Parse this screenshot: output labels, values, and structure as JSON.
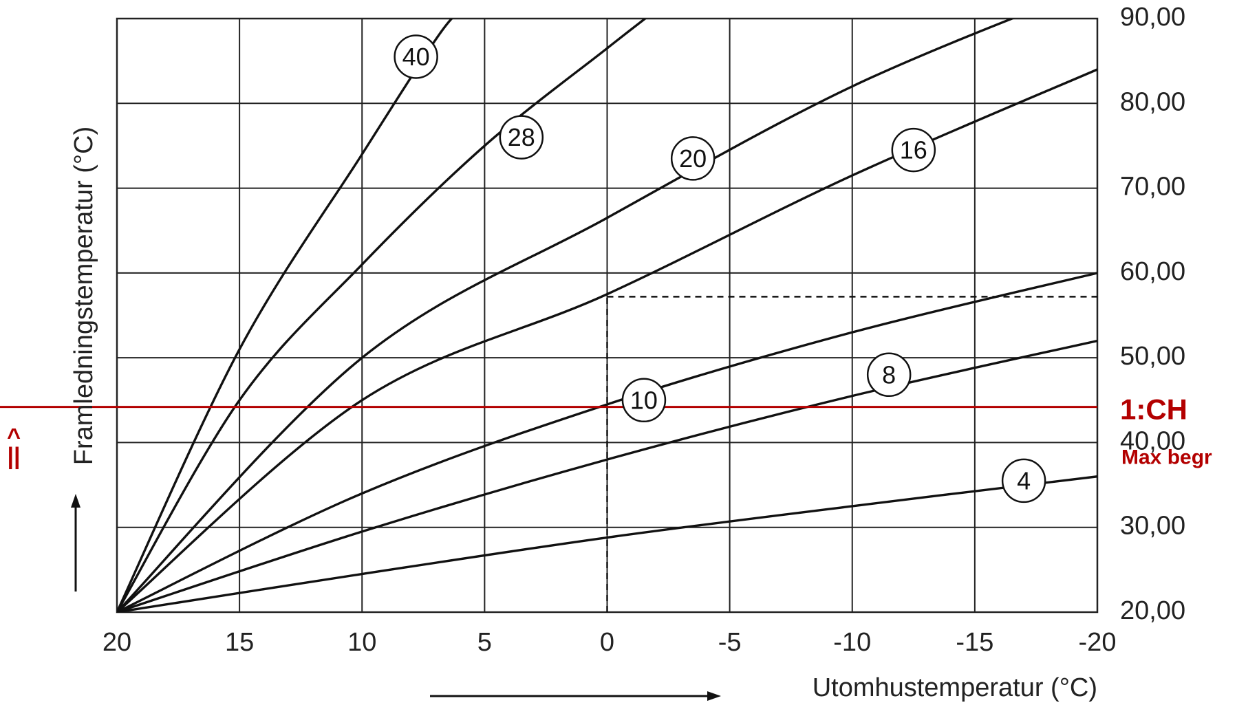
{
  "chart_data": {
    "type": "line",
    "xlabel": "Utomhustemperatur (°C)",
    "ylabel": "Framledningstemperatur (°C)",
    "xlim": [
      20,
      -20
    ],
    "ylim": [
      20,
      90
    ],
    "x_ticks": [
      "20",
      "15",
      "10",
      "5",
      "0",
      "-5",
      "-10",
      "-15",
      "-20"
    ],
    "y_ticks": [
      "20,00",
      "30,00",
      "40,00",
      "50,00",
      "60,00",
      "70,00",
      "80,00",
      "90,00"
    ],
    "grid": true,
    "series": [
      {
        "name": "4",
        "label_at": [
          -17,
          35.5
        ],
        "points": [
          [
            20,
            20
          ],
          [
            10,
            24.5
          ],
          [
            0,
            28.8
          ],
          [
            -10,
            32.5
          ],
          [
            -20,
            36
          ]
        ]
      },
      {
        "name": "8",
        "label_at": [
          -11.5,
          48
        ],
        "points": [
          [
            20,
            20
          ],
          [
            10,
            29.5
          ],
          [
            0,
            38
          ],
          [
            -10,
            45.5
          ],
          [
            -20,
            52
          ]
        ]
      },
      {
        "name": "10",
        "label_at": [
          -1.5,
          45
        ],
        "points": [
          [
            20,
            20
          ],
          [
            10,
            34
          ],
          [
            0,
            44.5
          ],
          [
            -10,
            53
          ],
          [
            -20,
            60
          ]
        ]
      },
      {
        "name": "16",
        "label_at": [
          -12.5,
          74.5
        ],
        "points": [
          [
            20,
            20
          ],
          [
            10,
            45
          ],
          [
            0,
            57.5
          ],
          [
            -10,
            71.5
          ],
          [
            -20,
            84
          ]
        ]
      },
      {
        "name": "20",
        "label_at": [
          -3.5,
          73.5
        ],
        "points": [
          [
            20,
            20
          ],
          [
            10,
            50
          ],
          [
            0,
            66.5
          ],
          [
            -10,
            82
          ],
          [
            -20,
            94
          ]
        ]
      },
      {
        "name": "28",
        "label_at": [
          3.5,
          76
        ],
        "points": [
          [
            20,
            20
          ],
          [
            15,
            45
          ],
          [
            10,
            61
          ],
          [
            5,
            75
          ],
          [
            0,
            86.5
          ],
          [
            -2,
            91
          ]
        ]
      },
      {
        "name": "40",
        "label_at": [
          7.8,
          85.5
        ],
        "points": [
          [
            20,
            20
          ],
          [
            15,
            51
          ],
          [
            10,
            74
          ],
          [
            7,
            87.5
          ],
          [
            6,
            91
          ]
        ]
      }
    ],
    "annotations": {
      "dashed_marker": {
        "x": 0,
        "y": 57.2
      },
      "red_line_y": 44.2,
      "red_line_label": "1:CH",
      "red_sub_label": "Max begr",
      "red_symbol": "^\n||"
    }
  }
}
